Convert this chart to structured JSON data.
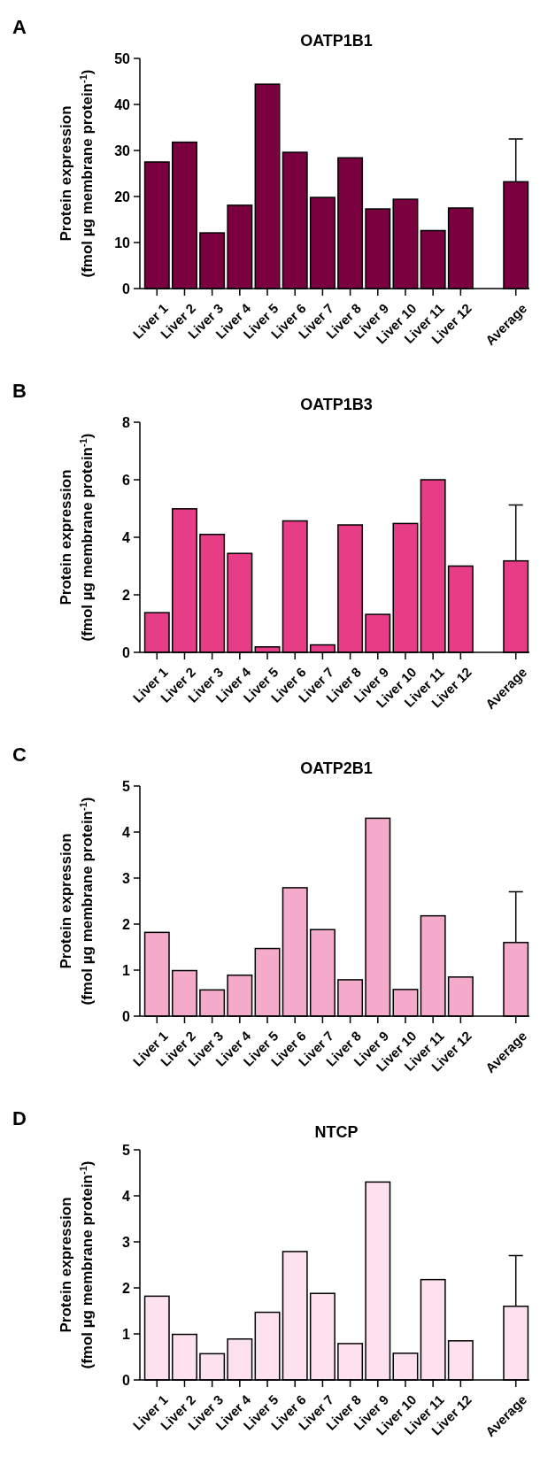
{
  "chart_data": [
    {
      "type": "bar",
      "title": "OATP1B1",
      "ylabel": "Protein expression\n(fmol µg membrane protein$^{-1}$)",
      "annotations": [
        "A"
      ],
      "categories": [
        "Liver 1",
        "Liver 2",
        "Liver 3",
        "Liver 4",
        "Liver 5",
        "Liver 6",
        "Liver 7",
        "Liver 8",
        "Liver 9",
        "Liver 10",
        "Liver 11",
        "Liver 12",
        null,
        "Average"
      ],
      "values": [
        27.5,
        31.8,
        12.1,
        18.1,
        44.4,
        29.6,
        19.8,
        28.4,
        17.3,
        19.4,
        12.6,
        17.5,
        null,
        23.2
      ],
      "errors": [
        null,
        null,
        null,
        null,
        null,
        null,
        null,
        null,
        null,
        null,
        null,
        null,
        null,
        [
          23.2,
          32.5
        ]
      ],
      "color": "#7a0040",
      "ylim": [
        0,
        50
      ],
      "yticks": [
        0,
        10,
        20,
        30,
        40,
        50
      ]
    },
    {
      "type": "bar",
      "title": "OATP1B3",
      "ylabel": "Protein expression\n(fmol µg membrane protein$^{-1}$)",
      "annotations": [
        "B"
      ],
      "categories": [
        "Liver 1",
        "Liver 2",
        "Liver 3",
        "Liver 4",
        "Liver 5",
        "Liver 6",
        "Liver 7",
        "Liver 8",
        "Liver 9",
        "Liver 10",
        "Liver 11",
        "Liver 12",
        null,
        "Average"
      ],
      "values": [
        1.38,
        4.99,
        4.1,
        3.44,
        0.19,
        4.57,
        0.26,
        4.43,
        1.32,
        4.48,
        6.0,
        3.0,
        null,
        3.18
      ],
      "errors": [
        null,
        null,
        null,
        null,
        null,
        null,
        null,
        null,
        null,
        null,
        null,
        null,
        null,
        [
          3.18,
          5.12
        ]
      ],
      "color": "#e63d86",
      "ylim": [
        0,
        8
      ],
      "yticks": [
        0,
        2,
        4,
        6,
        8
      ]
    },
    {
      "type": "bar",
      "title": "OATP2B1",
      "ylabel": "Protein expression\n(fmol µg membrane protein$^{-1}$)",
      "annotations": [
        "C"
      ],
      "categories": [
        "Liver 1",
        "Liver 2",
        "Liver 3",
        "Liver 4",
        "Liver 5",
        "Liver 6",
        "Liver 7",
        "Liver 8",
        "Liver 9",
        "Liver 10",
        "Liver 11",
        "Liver 12",
        null,
        "Average"
      ],
      "values": [
        1.82,
        0.99,
        0.57,
        0.89,
        1.47,
        2.79,
        1.88,
        0.79,
        4.3,
        0.58,
        2.18,
        0.85,
        null,
        1.6
      ],
      "errors": [
        null,
        null,
        null,
        null,
        null,
        null,
        null,
        null,
        null,
        null,
        null,
        null,
        null,
        [
          1.6,
          2.7
        ]
      ],
      "color": "#f4aacb",
      "ylim": [
        0,
        5
      ],
      "yticks": [
        0,
        1,
        2,
        3,
        4,
        5
      ]
    },
    {
      "type": "bar",
      "title": "NTCP",
      "ylabel": "Protein expression\n(fmol µg membrane protein$^{-1}$)",
      "annotations": [
        "D"
      ],
      "categories": [
        "Liver 1",
        "Liver 2",
        "Liver 3",
        "Liver 4",
        "Liver 5",
        "Liver 6",
        "Liver 7",
        "Liver 8",
        "Liver 9",
        "Liver 10",
        "Liver 11",
        "Liver 12",
        null,
        "Average"
      ],
      "values": [
        1.82,
        0.99,
        0.57,
        0.89,
        1.47,
        2.79,
        1.88,
        0.79,
        4.3,
        0.58,
        2.18,
        0.85,
        null,
        1.6
      ],
      "errors": [
        null,
        null,
        null,
        null,
        null,
        null,
        null,
        null,
        null,
        null,
        null,
        null,
        null,
        [
          1.6,
          2.7
        ]
      ],
      "color": "#fde1ee",
      "ylim": [
        0,
        5
      ],
      "yticks": [
        0,
        1,
        2,
        3,
        4,
        5
      ]
    }
  ]
}
